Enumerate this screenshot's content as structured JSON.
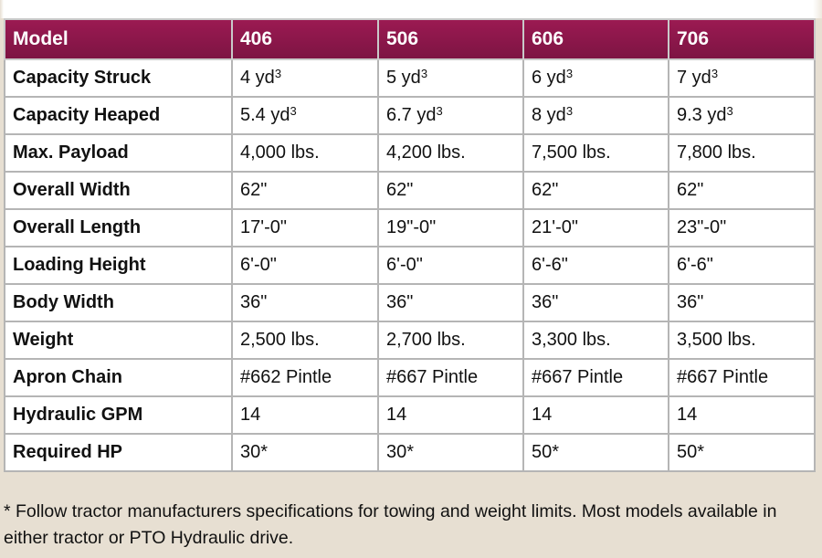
{
  "table": {
    "header": [
      "Model",
      "406",
      "506",
      "606",
      "706"
    ],
    "rows": [
      {
        "label": "Capacity Struck",
        "values": [
          "4 yd",
          "5 yd",
          "6 yd",
          "7 yd"
        ],
        "sup": "3"
      },
      {
        "label": "Capacity Heaped",
        "values": [
          "5.4 yd",
          "6.7 yd",
          "8 yd",
          "9.3 yd"
        ],
        "sup": "3"
      },
      {
        "label": "Max. Payload",
        "values": [
          "4,000 lbs.",
          "4,200 lbs.",
          "7,500 lbs.",
          "7,800 lbs."
        ]
      },
      {
        "label": "Overall Width",
        "values": [
          "62\"",
          "62\"",
          "62\"",
          "62\""
        ]
      },
      {
        "label": "Overall Length",
        "values": [
          "17'-0\"",
          "19\"-0\"",
          "21'-0\"",
          "23\"-0\""
        ]
      },
      {
        "label": "Loading Height",
        "values": [
          "6'-0\"",
          "6'-0\"",
          "6'-6\"",
          "6'-6\""
        ]
      },
      {
        "label": "Body Width",
        "values": [
          "36\"",
          "36\"",
          "36\"",
          "36\""
        ]
      },
      {
        "label": "Weight",
        "values": [
          "2,500 lbs.",
          "2,700 lbs.",
          "3,300 lbs.",
          "3,500 lbs."
        ]
      },
      {
        "label": "Apron Chain",
        "values": [
          "#662 Pintle",
          "#667 Pintle",
          "#667 Pintle",
          "#667 Pintle"
        ]
      },
      {
        "label": "Hydraulic GPM",
        "values": [
          "14",
          "14",
          "14",
          "14"
        ]
      },
      {
        "label": "Required HP",
        "values": [
          "30*",
          "30*",
          "50*",
          "50*"
        ]
      }
    ]
  },
  "footnote": "* Follow tractor manufacturers specifications for towing and weight limits. Most models available in either tractor or PTO Hydraulic drive.",
  "colors": {
    "header_bg": "#8a1749",
    "header_text": "#ffffff",
    "border": "#b5b5b5",
    "page_bg": "#e7dfd2"
  }
}
